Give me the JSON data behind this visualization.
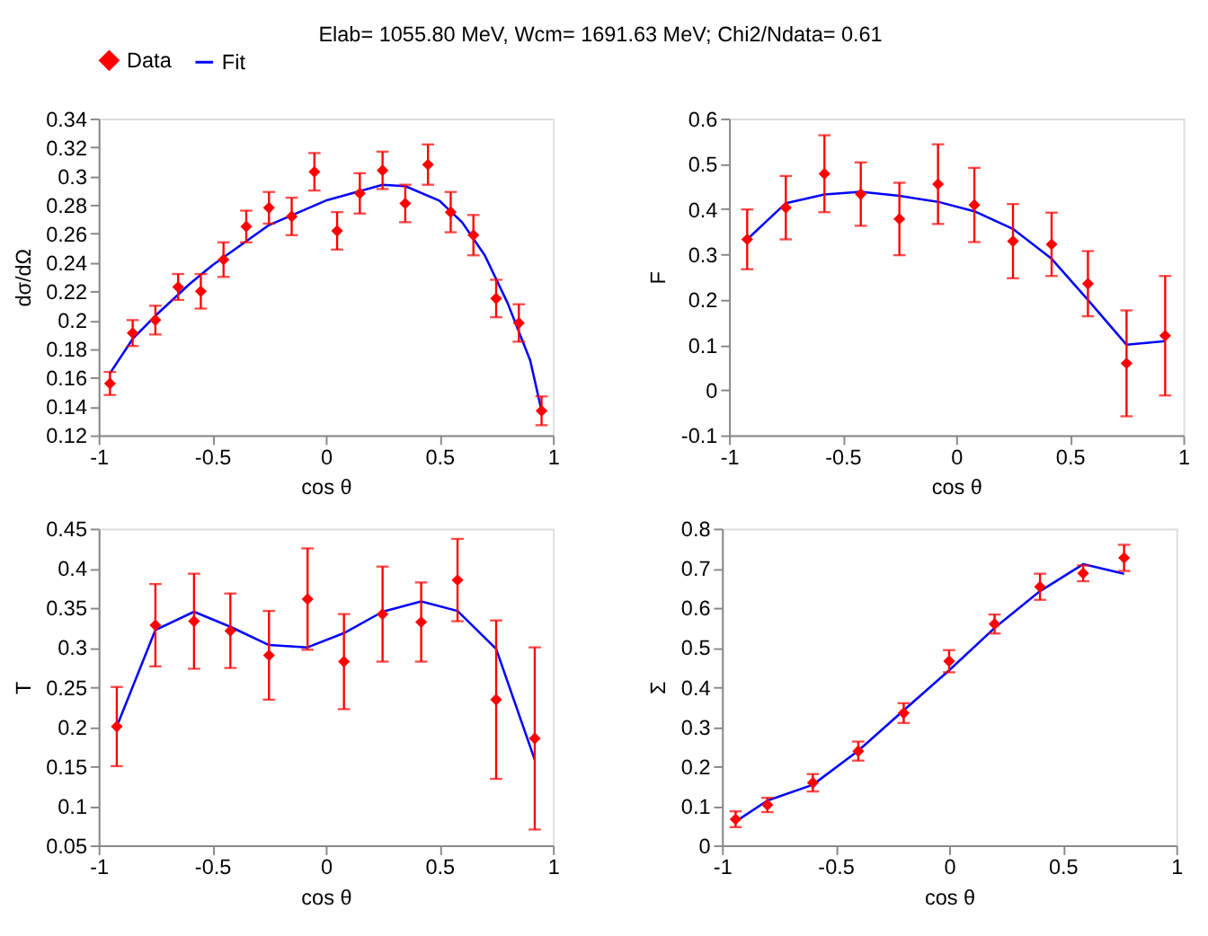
{
  "chart_data": [
    {
      "type": "scatter",
      "title": "Elab= 1055.80 MeV, Wcm= 1691.63 MeV;  Chi2/Ndata= 0.61",
      "xlabel": "cos θ",
      "ylabel": "dσ/dΩ",
      "xlim": [
        -1,
        1
      ],
      "xticks": [
        -1,
        -0.5,
        0,
        0.5,
        1
      ],
      "ylim": [
        0.12,
        0.34
      ],
      "yticks": [
        0.12,
        0.14,
        0.16,
        0.18,
        0.2,
        0.22,
        0.24,
        0.26,
        0.28,
        0.3,
        0.32,
        0.34
      ],
      "grid": false,
      "legend": "top",
      "series": [
        {
          "name": "Data",
          "type": "scatter",
          "marker": "diamond",
          "color": "#ff0000",
          "x": [
            -0.95,
            -0.85,
            -0.75,
            -0.65,
            -0.55,
            -0.45,
            -0.35,
            -0.25,
            -0.15,
            -0.05,
            0.05,
            0.15,
            0.25,
            0.35,
            0.45,
            0.55,
            0.65,
            0.75,
            0.85,
            0.95
          ],
          "values": [
            0.156,
            0.191,
            0.2,
            0.223,
            0.22,
            0.242,
            0.265,
            0.278,
            0.272,
            0.303,
            0.262,
            0.288,
            0.304,
            0.281,
            0.308,
            0.275,
            0.259,
            0.215,
            0.198,
            0.137
          ],
          "errors": [
            0.008,
            0.009,
            0.01,
            0.009,
            0.012,
            0.012,
            0.011,
            0.011,
            0.013,
            0.013,
            0.013,
            0.014,
            0.013,
            0.013,
            0.014,
            0.014,
            0.014,
            0.013,
            0.013,
            0.01
          ]
        },
        {
          "name": "Fit",
          "type": "line",
          "marker": "none",
          "color": "#0000ff",
          "x": [
            -0.95,
            -0.85,
            -0.75,
            -0.6,
            -0.5,
            -0.25,
            0,
            0.25,
            0.35,
            0.5,
            0.6,
            0.7,
            0.8,
            0.9,
            0.95
          ],
          "values": [
            0.163,
            0.187,
            0.203,
            0.225,
            0.238,
            0.266,
            0.283,
            0.294,
            0.293,
            0.283,
            0.268,
            0.245,
            0.212,
            0.172,
            0.137
          ]
        }
      ]
    },
    {
      "type": "scatter",
      "xlabel": "cos θ",
      "ylabel": "F",
      "xlim": [
        -1,
        1
      ],
      "xticks": [
        -1,
        -0.5,
        0,
        0.5,
        1
      ],
      "ylim": [
        -0.1,
        0.6
      ],
      "yticks": [
        -0.1,
        0,
        0.1,
        0.2,
        0.3,
        0.4,
        0.5,
        0.6
      ],
      "grid": false,
      "legend": "top",
      "series": [
        {
          "name": "Data",
          "type": "scatter",
          "marker": "diamond",
          "color": "#ff0000",
          "x": [
            -0.92,
            -0.75,
            -0.58,
            -0.42,
            -0.25,
            -0.08,
            0.08,
            0.25,
            0.42,
            0.58,
            0.75,
            0.92
          ],
          "values": [
            0.333,
            0.403,
            0.478,
            0.433,
            0.378,
            0.455,
            0.409,
            0.329,
            0.322,
            0.235,
            0.059,
            0.12
          ],
          "errors": [
            0.066,
            0.07,
            0.085,
            0.07,
            0.08,
            0.088,
            0.082,
            0.082,
            0.07,
            0.072,
            0.117,
            0.132
          ]
        },
        {
          "name": "Fit",
          "type": "line",
          "marker": "none",
          "color": "#0000ff",
          "x": [
            -0.92,
            -0.75,
            -0.58,
            -0.42,
            -0.25,
            -0.08,
            0.08,
            0.25,
            0.42,
            0.58,
            0.75,
            0.92
          ],
          "values": [
            0.333,
            0.413,
            0.432,
            0.438,
            0.429,
            0.416,
            0.395,
            0.356,
            0.29,
            0.199,
            0.1,
            0.108
          ]
        }
      ]
    },
    {
      "type": "scatter",
      "xlabel": "cos θ",
      "ylabel": "T",
      "xlim": [
        -1,
        1
      ],
      "xticks": [
        -1,
        -0.5,
        0,
        0.5,
        1
      ],
      "ylim": [
        0.05,
        0.45
      ],
      "yticks": [
        0.05,
        0.1,
        0.15,
        0.2,
        0.25,
        0.3,
        0.35,
        0.4,
        0.45
      ],
      "grid": false,
      "legend": "top",
      "series": [
        {
          "name": "Data",
          "type": "scatter",
          "marker": "diamond",
          "color": "#ff0000",
          "x": [
            -0.92,
            -0.75,
            -0.58,
            -0.42,
            -0.25,
            -0.08,
            0.08,
            0.25,
            0.42,
            0.58,
            0.75,
            0.92
          ],
          "values": [
            0.2,
            0.328,
            0.333,
            0.321,
            0.29,
            0.361,
            0.282,
            0.342,
            0.332,
            0.385,
            0.234,
            0.185
          ],
          "errors": [
            0.05,
            0.052,
            0.06,
            0.047,
            0.056,
            0.064,
            0.06,
            0.06,
            0.05,
            0.052,
            0.1,
            0.115
          ]
        },
        {
          "name": "Fit",
          "type": "line",
          "marker": "none",
          "color": "#0000ff",
          "x": [
            -0.92,
            -0.75,
            -0.58,
            -0.42,
            -0.25,
            -0.08,
            0.08,
            0.25,
            0.42,
            0.58,
            0.75,
            0.92
          ],
          "values": [
            0.2,
            0.322,
            0.345,
            0.326,
            0.303,
            0.3,
            0.318,
            0.345,
            0.358,
            0.346,
            0.298,
            0.158
          ]
        }
      ]
    },
    {
      "type": "scatter",
      "xlabel": "cos θ",
      "ylabel": "Σ",
      "xlim": [
        -1,
        1
      ],
      "xticks": [
        -1,
        -0.5,
        0,
        0.5,
        1
      ],
      "ylim": [
        0,
        0.8
      ],
      "yticks": [
        0,
        0.1,
        0.2,
        0.3,
        0.4,
        0.5,
        0.6,
        0.7,
        0.8
      ],
      "grid": false,
      "legend": "top",
      "series": [
        {
          "name": "Data",
          "type": "scatter",
          "marker": "diamond",
          "color": "#ff0000",
          "x": [
            -0.94,
            -0.8,
            -0.6,
            -0.4,
            -0.2,
            0,
            0.2,
            0.4,
            0.59,
            0.77
          ],
          "values": [
            0.066,
            0.102,
            0.158,
            0.238,
            0.334,
            0.465,
            0.559,
            0.653,
            0.687,
            0.726
          ],
          "errors": [
            0.02,
            0.018,
            0.022,
            0.024,
            0.025,
            0.028,
            0.024,
            0.033,
            0.02,
            0.033
          ]
        },
        {
          "name": "Fit",
          "type": "line",
          "marker": "none",
          "color": "#0000ff",
          "x": [
            -0.94,
            -0.8,
            -0.6,
            -0.4,
            -0.2,
            0,
            0.2,
            0.4,
            0.59,
            0.77
          ],
          "values": [
            0.06,
            0.113,
            0.153,
            0.239,
            0.341,
            0.442,
            0.549,
            0.642,
            0.71,
            0.686
          ]
        }
      ]
    }
  ]
}
